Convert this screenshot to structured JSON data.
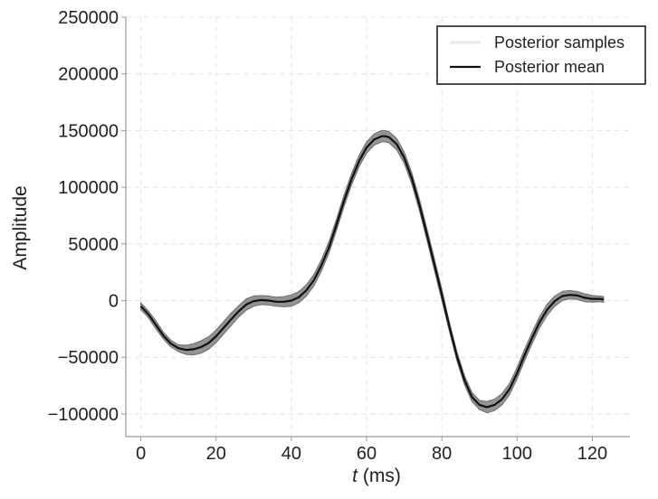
{
  "chart_data": {
    "type": "line",
    "title": "",
    "xlabel_var": "t",
    "xlabel_unit": " (ms)",
    "ylabel": "Amplitude",
    "xlim": [
      -4,
      130
    ],
    "ylim": [
      -120000,
      250000
    ],
    "xticks": [
      0,
      20,
      40,
      60,
      80,
      100,
      120
    ],
    "xtick_labels": [
      "0",
      "20",
      "40",
      "60",
      "80",
      "100",
      "120"
    ],
    "yticks": [
      -100000,
      -50000,
      0,
      50000,
      100000,
      150000,
      200000,
      250000
    ],
    "ytick_labels": [
      "−100000",
      "−50000",
      "0",
      "50000",
      "100000",
      "150000",
      "200000",
      "250000"
    ],
    "grid": true,
    "legend_position": "top-right",
    "series": [
      {
        "name": "Posterior samples",
        "kind": "band",
        "color": "#808080",
        "x": [
          0,
          2,
          4,
          6,
          8,
          10,
          12,
          14,
          16,
          18,
          20,
          22,
          24,
          26,
          28,
          30,
          32,
          34,
          36,
          38,
          40,
          42,
          44,
          46,
          48,
          50,
          52,
          54,
          56,
          58,
          60,
          62,
          64,
          65,
          66,
          68,
          70,
          72,
          74,
          76,
          78,
          80,
          82,
          84,
          86,
          88,
          90,
          92,
          94,
          96,
          98,
          100,
          102,
          104,
          106,
          108,
          110,
          112,
          114,
          116,
          118,
          120,
          122,
          123
        ],
        "lower": [
          -8000,
          -15000,
          -25000,
          -34000,
          -41000,
          -45000,
          -47500,
          -48000,
          -46500,
          -43000,
          -37000,
          -29500,
          -22000,
          -14500,
          -8500,
          -5000,
          -3500,
          -4000,
          -5000,
          -5500,
          -5000,
          -2000,
          4000,
          13000,
          26000,
          42000,
          62000,
          83000,
          102000,
          118000,
          130000,
          137000,
          140000,
          140000,
          139000,
          133000,
          121000,
          103000,
          80000,
          54000,
          27000,
          0,
          -27000,
          -53000,
          -74000,
          -89000,
          -96000,
          -99000,
          -97000,
          -92000,
          -83000,
          -69000,
          -53000,
          -38000,
          -24000,
          -13000,
          -5000,
          0,
          1500,
          1000,
          -1000,
          -1500,
          -1000,
          -1500
        ],
        "upper": [
          -2000,
          -9000,
          -18000,
          -28000,
          -35000,
          -39000,
          -39500,
          -38000,
          -35500,
          -32000,
          -26000,
          -18500,
          -11000,
          -4500,
          1500,
          4000,
          4500,
          4000,
          3000,
          3500,
          5000,
          8000,
          14000,
          23000,
          36000,
          52000,
          72000,
          93000,
          112000,
          128000,
          140000,
          147000,
          150000,
          150000,
          149000,
          143000,
          131000,
          113000,
          90000,
          64000,
          37000,
          10000,
          -19000,
          -45000,
          -66000,
          -81000,
          -88000,
          -89000,
          -87000,
          -82000,
          -73000,
          -59000,
          -43000,
          -28000,
          -14000,
          -3000,
          4000,
          8000,
          9000,
          8000,
          6000,
          4500,
          4000,
          3500
        ]
      },
      {
        "name": "Posterior mean",
        "kind": "line",
        "color": "#111111",
        "x": [
          0,
          2,
          4,
          6,
          8,
          10,
          12,
          14,
          16,
          18,
          20,
          22,
          24,
          26,
          28,
          30,
          32,
          34,
          36,
          38,
          40,
          42,
          44,
          46,
          48,
          50,
          52,
          54,
          56,
          58,
          60,
          62,
          64,
          65,
          66,
          68,
          70,
          72,
          74,
          76,
          78,
          80,
          82,
          84,
          86,
          88,
          90,
          92,
          94,
          96,
          98,
          100,
          102,
          104,
          106,
          108,
          110,
          112,
          114,
          116,
          118,
          120,
          122,
          123
        ],
        "y": [
          -5000,
          -12000,
          -21500,
          -31000,
          -38000,
          -42000,
          -43500,
          -43000,
          -41000,
          -37500,
          -31500,
          -24000,
          -16500,
          -9500,
          -3500,
          -500,
          500,
          0,
          -1000,
          -1000,
          0,
          3000,
          9000,
          18000,
          31000,
          47000,
          67000,
          88000,
          107000,
          123000,
          135000,
          142000,
          145000,
          145000,
          144000,
          138000,
          126000,
          108000,
          85000,
          59000,
          32000,
          5000,
          -23000,
          -49000,
          -70000,
          -85000,
          -92000,
          -94000,
          -92000,
          -87000,
          -78000,
          -64000,
          -48000,
          -33000,
          -19000,
          -8000,
          -500,
          4000,
          5000,
          4500,
          2500,
          1500,
          1500,
          1000
        ]
      }
    ]
  }
}
